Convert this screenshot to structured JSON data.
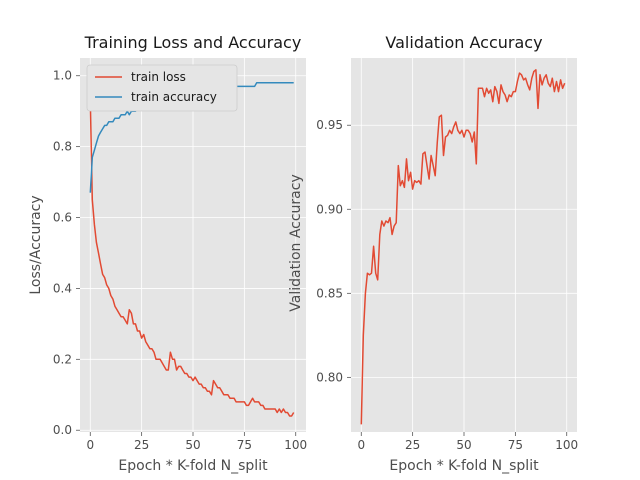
{
  "colors": {
    "red": "#e24a33",
    "blue": "#348abd"
  },
  "chart_data": [
    {
      "type": "line",
      "title": "Training Loss and Accuracy",
      "xlabel": "Epoch * K-fold N_split",
      "ylabel": "Loss/Accuracy",
      "xlim": [
        -5,
        105
      ],
      "ylim": [
        -0.005,
        1.05
      ],
      "xticks": [
        0,
        25,
        50,
        75,
        100
      ],
      "yticks": [
        0.0,
        0.2,
        0.4,
        0.6,
        0.8,
        1.0
      ],
      "grid": true,
      "legend_position": "upper-left",
      "series": [
        {
          "name": "train loss",
          "color": "#e24a33",
          "x": [
            0,
            1,
            2,
            3,
            4,
            5,
            6,
            7,
            8,
            9,
            10,
            11,
            12,
            13,
            14,
            15,
            16,
            17,
            18,
            19,
            20,
            21,
            22,
            23,
            24,
            25,
            26,
            27,
            28,
            29,
            30,
            31,
            32,
            33,
            34,
            35,
            36,
            37,
            38,
            39,
            40,
            41,
            42,
            43,
            44,
            45,
            46,
            47,
            48,
            49,
            50,
            51,
            52,
            53,
            54,
            55,
            56,
            57,
            58,
            59,
            60,
            61,
            62,
            63,
            64,
            65,
            66,
            67,
            68,
            69,
            70,
            71,
            72,
            73,
            74,
            75,
            76,
            77,
            78,
            79,
            80,
            81,
            82,
            83,
            84,
            85,
            86,
            87,
            88,
            89,
            90,
            91,
            92,
            93,
            94,
            95,
            96,
            97,
            98,
            99
          ],
          "y": [
            0.93,
            0.65,
            0.58,
            0.53,
            0.5,
            0.47,
            0.44,
            0.43,
            0.41,
            0.4,
            0.38,
            0.37,
            0.35,
            0.34,
            0.33,
            0.32,
            0.32,
            0.31,
            0.3,
            0.34,
            0.33,
            0.3,
            0.3,
            0.28,
            0.28,
            0.26,
            0.27,
            0.25,
            0.24,
            0.23,
            0.23,
            0.22,
            0.2,
            0.2,
            0.2,
            0.19,
            0.18,
            0.17,
            0.17,
            0.22,
            0.2,
            0.2,
            0.17,
            0.18,
            0.18,
            0.17,
            0.16,
            0.16,
            0.15,
            0.15,
            0.14,
            0.15,
            0.14,
            0.13,
            0.13,
            0.12,
            0.12,
            0.11,
            0.11,
            0.1,
            0.14,
            0.13,
            0.12,
            0.12,
            0.11,
            0.1,
            0.1,
            0.1,
            0.09,
            0.09,
            0.09,
            0.08,
            0.08,
            0.08,
            0.08,
            0.08,
            0.07,
            0.07,
            0.08,
            0.09,
            0.08,
            0.08,
            0.08,
            0.07,
            0.07,
            0.06,
            0.06,
            0.06,
            0.06,
            0.06,
            0.06,
            0.05,
            0.06,
            0.05,
            0.06,
            0.05,
            0.05,
            0.04,
            0.04,
            0.05
          ]
        },
        {
          "name": "train accuracy",
          "color": "#348abd",
          "x": [
            0,
            1,
            2,
            3,
            4,
            5,
            6,
            7,
            8,
            9,
            10,
            11,
            12,
            13,
            14,
            15,
            16,
            17,
            18,
            19,
            20,
            21,
            22,
            23,
            24,
            25,
            26,
            27,
            28,
            29,
            30,
            31,
            32,
            33,
            34,
            35,
            36,
            37,
            38,
            39,
            40,
            41,
            42,
            43,
            44,
            45,
            46,
            47,
            48,
            49,
            50,
            51,
            52,
            53,
            54,
            55,
            56,
            57,
            58,
            59,
            60,
            61,
            62,
            63,
            64,
            65,
            66,
            67,
            68,
            69,
            70,
            71,
            72,
            73,
            74,
            75,
            76,
            77,
            78,
            79,
            80,
            81,
            82,
            83,
            84,
            85,
            86,
            87,
            88,
            89,
            90,
            91,
            92,
            93,
            94,
            95,
            96,
            97,
            98,
            99
          ],
          "y": [
            0.67,
            0.77,
            0.79,
            0.81,
            0.83,
            0.84,
            0.85,
            0.86,
            0.86,
            0.87,
            0.87,
            0.87,
            0.88,
            0.88,
            0.88,
            0.89,
            0.89,
            0.89,
            0.9,
            0.89,
            0.9,
            0.9,
            0.9,
            0.91,
            0.91,
            0.91,
            0.91,
            0.92,
            0.92,
            0.92,
            0.92,
            0.93,
            0.93,
            0.93,
            0.93,
            0.93,
            0.93,
            0.93,
            0.94,
            0.93,
            0.94,
            0.94,
            0.94,
            0.94,
            0.94,
            0.94,
            0.95,
            0.95,
            0.95,
            0.95,
            0.95,
            0.95,
            0.95,
            0.95,
            0.96,
            0.96,
            0.96,
            0.96,
            0.96,
            0.96,
            0.95,
            0.96,
            0.96,
            0.96,
            0.96,
            0.96,
            0.96,
            0.97,
            0.97,
            0.97,
            0.97,
            0.97,
            0.97,
            0.97,
            0.97,
            0.97,
            0.97,
            0.97,
            0.97,
            0.97,
            0.97,
            0.98,
            0.98,
            0.98,
            0.98,
            0.98,
            0.98,
            0.98,
            0.98,
            0.98,
            0.98,
            0.98,
            0.98,
            0.98,
            0.98,
            0.98,
            0.98,
            0.98,
            0.98,
            0.98
          ]
        }
      ]
    },
    {
      "type": "line",
      "title": "Validation Accuracy",
      "xlabel": "Epoch * K-fold N_split",
      "ylabel": "Validation Accuracy",
      "xlim": [
        -5,
        105
      ],
      "ylim": [
        0.7675,
        0.99
      ],
      "xticks": [
        0,
        25,
        50,
        75,
        100
      ],
      "yticks": [
        0.8,
        0.85,
        0.9,
        0.95
      ],
      "grid": true,
      "series": [
        {
          "color": "#e24a33",
          "x": [
            0,
            1,
            2,
            3,
            4,
            5,
            6,
            7,
            8,
            9,
            10,
            11,
            12,
            13,
            14,
            15,
            16,
            17,
            18,
            19,
            20,
            21,
            22,
            23,
            24,
            25,
            26,
            27,
            28,
            29,
            30,
            31,
            32,
            33,
            34,
            35,
            36,
            37,
            38,
            39,
            40,
            41,
            42,
            43,
            44,
            45,
            46,
            47,
            48,
            49,
            50,
            51,
            52,
            53,
            54,
            55,
            56,
            57,
            58,
            59,
            60,
            61,
            62,
            63,
            64,
            65,
            66,
            67,
            68,
            69,
            70,
            71,
            72,
            73,
            74,
            75,
            76,
            77,
            78,
            79,
            80,
            81,
            82,
            83,
            84,
            85,
            86,
            87,
            88,
            89,
            90,
            91,
            92,
            93,
            94,
            95,
            96,
            97,
            98,
            99
          ],
          "y": [
            0.772,
            0.825,
            0.85,
            0.862,
            0.861,
            0.862,
            0.878,
            0.862,
            0.858,
            0.885,
            0.893,
            0.89,
            0.893,
            0.892,
            0.895,
            0.885,
            0.89,
            0.892,
            0.926,
            0.914,
            0.917,
            0.913,
            0.93,
            0.917,
            0.922,
            0.912,
            0.917,
            0.916,
            0.917,
            0.915,
            0.933,
            0.934,
            0.926,
            0.918,
            0.932,
            0.926,
            0.92,
            0.94,
            0.955,
            0.956,
            0.932,
            0.943,
            0.944,
            0.947,
            0.945,
            0.949,
            0.952,
            0.947,
            0.945,
            0.947,
            0.943,
            0.947,
            0.947,
            0.945,
            0.94,
            0.946,
            0.927,
            0.972,
            0.972,
            0.972,
            0.967,
            0.972,
            0.969,
            0.971,
            0.964,
            0.973,
            0.97,
            0.963,
            0.974,
            0.97,
            0.968,
            0.964,
            0.968,
            0.967,
            0.97,
            0.97,
            0.976,
            0.981,
            0.98,
            0.977,
            0.978,
            0.974,
            0.971,
            0.978,
            0.982,
            0.983,
            0.96,
            0.98,
            0.974,
            0.978,
            0.98,
            0.975,
            0.973,
            0.978,
            0.97,
            0.976,
            0.97,
            0.977,
            0.972,
            0.975
          ]
        }
      ]
    }
  ]
}
